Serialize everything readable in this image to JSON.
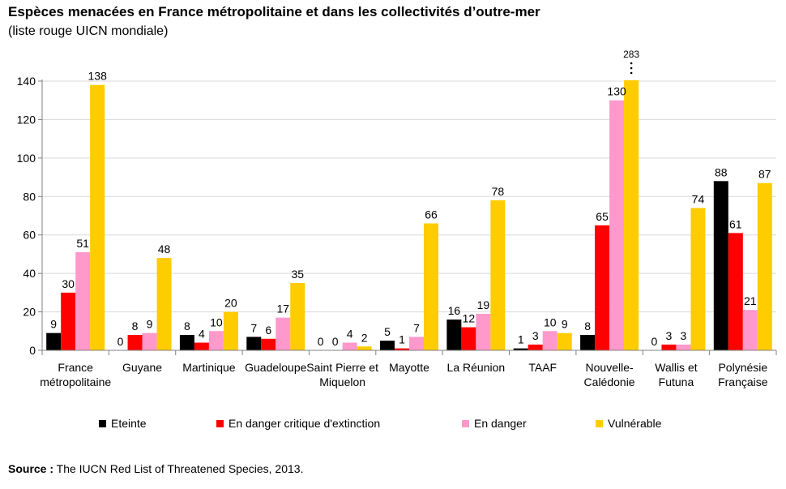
{
  "title": "Espèces menacées en France métropolitaine et dans les collectivités d’outre-mer",
  "subtitle": "(liste rouge UICN mondiale)",
  "source": {
    "label": "Source :",
    "text": "The IUCN Red List of Threatened Species, 2013."
  },
  "chart_data": {
    "type": "bar",
    "title": "Espèces menacées en France métropolitaine et dans les collectivités d’outre-mer",
    "subtitle": "(liste rouge UICN mondiale)",
    "categories": [
      [
        "France",
        "métropolitaine"
      ],
      [
        "Guyane"
      ],
      [
        "Martinique"
      ],
      [
        "Guadeloupe"
      ],
      [
        "Saint Pierre et",
        "Miquelon"
      ],
      [
        "Mayotte"
      ],
      [
        "La Réunion"
      ],
      [
        "TAAF"
      ],
      [
        "Nouvelle-",
        "Calédonie"
      ],
      [
        "Wallis et",
        "Futuna"
      ],
      [
        "Polynésie",
        "Française"
      ]
    ],
    "series": [
      {
        "name": "Eteinte",
        "color": "#000000",
        "values": [
          9,
          0,
          8,
          7,
          0,
          5,
          16,
          1,
          8,
          0,
          88
        ]
      },
      {
        "name": "En danger critique d'extinction",
        "color": "#ff0000",
        "values": [
          30,
          8,
          4,
          6,
          0,
          1,
          12,
          3,
          65,
          3,
          61
        ]
      },
      {
        "name": "En danger",
        "color": "#ff99cc",
        "values": [
          51,
          9,
          10,
          17,
          4,
          7,
          19,
          10,
          130,
          3,
          21
        ]
      },
      {
        "name": "Vulnérable",
        "color": "#ffcc00",
        "values": [
          138,
          48,
          20,
          35,
          2,
          66,
          78,
          9,
          283,
          74,
          87
        ]
      }
    ],
    "ylim": [
      0,
      140
    ],
    "yticks": [
      0,
      20,
      40,
      60,
      80,
      100,
      120,
      140
    ],
    "axis_break": {
      "category_index": 8,
      "series_index": 3,
      "label": "283"
    },
    "legend_position": "bottom",
    "grid": true
  }
}
